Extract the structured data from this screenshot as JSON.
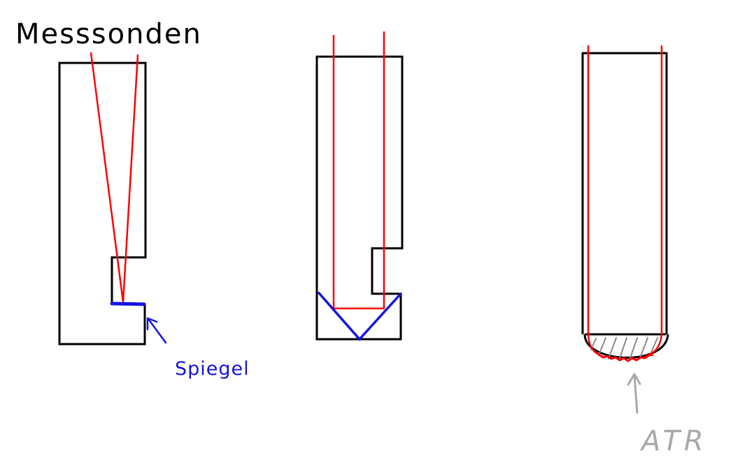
{
  "labels": {
    "probes": "Messsonden",
    "mirror": "Spiegel",
    "atr": "ATR"
  },
  "colors": {
    "outline": "#000000",
    "beam": "#ff0000",
    "mirror": "#1414e0",
    "annotation": "#a9a9a9"
  }
}
